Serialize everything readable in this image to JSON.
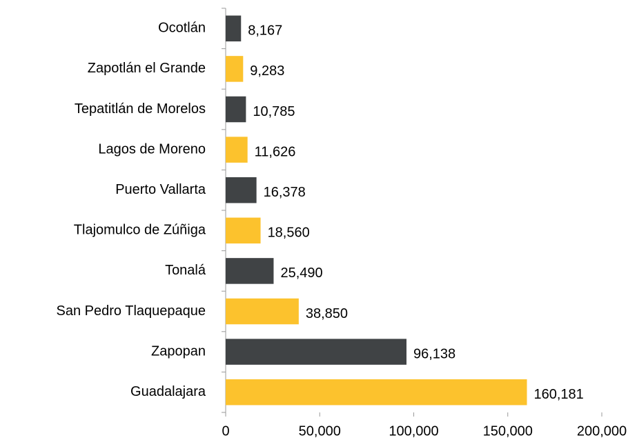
{
  "chart_data": {
    "type": "hbar",
    "categories": [
      "Ocotlán",
      "Zapotlán el Grande",
      "Tepatitlán de Morelos",
      "Lagos de Moreno",
      "Puerto Vallarta",
      "Tlajomulco de Zúñiga",
      "Tonalá",
      "San Pedro Tlaquepaque",
      "Zapopan",
      "Guadalajara"
    ],
    "values": [
      8167,
      9283,
      10785,
      11626,
      16378,
      18560,
      25490,
      38850,
      96138,
      160181
    ],
    "value_labels": [
      "8,167",
      "9,283",
      "10,785",
      "11,626",
      "16,378",
      "18,560",
      "25,490",
      "38,850",
      "96,138",
      "160,181"
    ],
    "colors": [
      "#404345",
      "#fcc22d",
      "#404345",
      "#fcc22d",
      "#404345",
      "#fcc22d",
      "#404345",
      "#fcc22d",
      "#404345",
      "#fcc22d"
    ],
    "xlim": [
      0,
      200000
    ],
    "xticks": [
      0,
      {
        "value": 50000,
        "label": "50,000"
      },
      {
        "value": 100000,
        "label": "100,000"
      },
      {
        "value": 150000,
        "label": "150,000"
      },
      {
        "value": 200000,
        "label": "200,000"
      }
    ],
    "grid": false
  }
}
